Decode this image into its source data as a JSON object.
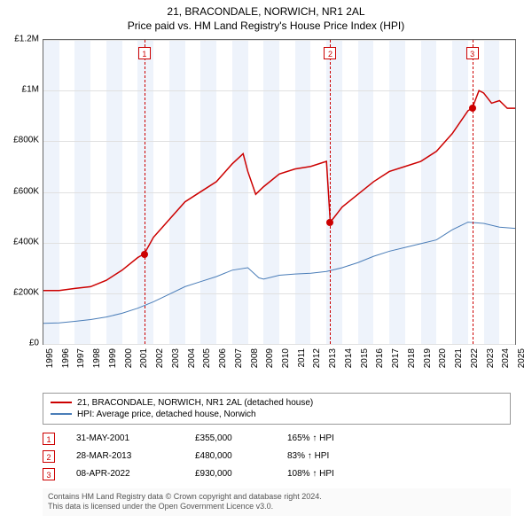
{
  "title": {
    "main": "21, BRACONDALE, NORWICH, NR1 2AL",
    "sub": "Price paid vs. HM Land Registry's House Price Index (HPI)"
  },
  "chart": {
    "type": "line",
    "background_color": "#ffffff",
    "plot_border_color": "#666666",
    "grid_color": "#e0e0e0",
    "band_color": "#eef3fb",
    "y": {
      "min": 0,
      "max": 1200000,
      "ticks": [
        0,
        200000,
        400000,
        600000,
        800000,
        1000000,
        1200000
      ],
      "labels": [
        "£0",
        "£200K",
        "£400K",
        "£600K",
        "£800K",
        "£1M",
        "£1.2M"
      ]
    },
    "x": {
      "min": 1995,
      "max": 2025,
      "ticks": [
        1995,
        1996,
        1997,
        1998,
        1999,
        2000,
        2001,
        2002,
        2003,
        2004,
        2005,
        2006,
        2007,
        2008,
        2009,
        2010,
        2011,
        2012,
        2013,
        2014,
        2015,
        2016,
        2017,
        2018,
        2019,
        2020,
        2021,
        2022,
        2023,
        2024,
        2025
      ]
    },
    "series": [
      {
        "id": "price_paid",
        "label": "21, BRACONDALE, NORWICH, NR1 2AL (detached house)",
        "color": "#cc0000",
        "width": 1.5,
        "points": [
          [
            1995,
            210000
          ],
          [
            1996,
            210000
          ],
          [
            1997,
            218000
          ],
          [
            1998,
            225000
          ],
          [
            1999,
            250000
          ],
          [
            2000,
            290000
          ],
          [
            2001,
            340000
          ],
          [
            2001.42,
            355000
          ],
          [
            2002,
            420000
          ],
          [
            2003,
            490000
          ],
          [
            2004,
            560000
          ],
          [
            2005,
            600000
          ],
          [
            2006,
            640000
          ],
          [
            2007,
            710000
          ],
          [
            2007.7,
            750000
          ],
          [
            2008,
            680000
          ],
          [
            2008.5,
            590000
          ],
          [
            2009,
            620000
          ],
          [
            2010,
            670000
          ],
          [
            2011,
            690000
          ],
          [
            2012,
            700000
          ],
          [
            2013,
            720000
          ],
          [
            2013.24,
            480000
          ],
          [
            2013.5,
            500000
          ],
          [
            2014,
            540000
          ],
          [
            2015,
            590000
          ],
          [
            2016,
            640000
          ],
          [
            2017,
            680000
          ],
          [
            2018,
            700000
          ],
          [
            2019,
            720000
          ],
          [
            2020,
            760000
          ],
          [
            2021,
            830000
          ],
          [
            2022,
            920000
          ],
          [
            2022.27,
            930000
          ],
          [
            2022.7,
            1000000
          ],
          [
            2023,
            990000
          ],
          [
            2023.5,
            950000
          ],
          [
            2024,
            960000
          ],
          [
            2024.5,
            930000
          ],
          [
            2025,
            930000
          ]
        ]
      },
      {
        "id": "hpi",
        "label": "HPI: Average price, detached house, Norwich",
        "color": "#4a7db8",
        "width": 1,
        "points": [
          [
            1995,
            80000
          ],
          [
            1996,
            82000
          ],
          [
            1997,
            88000
          ],
          [
            1998,
            95000
          ],
          [
            1999,
            105000
          ],
          [
            2000,
            120000
          ],
          [
            2001,
            140000
          ],
          [
            2002,
            165000
          ],
          [
            2003,
            195000
          ],
          [
            2004,
            225000
          ],
          [
            2005,
            245000
          ],
          [
            2006,
            265000
          ],
          [
            2007,
            290000
          ],
          [
            2008,
            300000
          ],
          [
            2008.7,
            260000
          ],
          [
            2009,
            255000
          ],
          [
            2010,
            270000
          ],
          [
            2011,
            275000
          ],
          [
            2012,
            278000
          ],
          [
            2013,
            285000
          ],
          [
            2014,
            300000
          ],
          [
            2015,
            320000
          ],
          [
            2016,
            345000
          ],
          [
            2017,
            365000
          ],
          [
            2018,
            380000
          ],
          [
            2019,
            395000
          ],
          [
            2020,
            410000
          ],
          [
            2021,
            450000
          ],
          [
            2022,
            480000
          ],
          [
            2023,
            475000
          ],
          [
            2024,
            460000
          ],
          [
            2025,
            455000
          ]
        ]
      }
    ],
    "events": [
      {
        "n": "1",
        "year": 2001.42,
        "value": 355000
      },
      {
        "n": "2",
        "year": 2013.24,
        "value": 480000
      },
      {
        "n": "3",
        "year": 2022.27,
        "value": 930000
      }
    ],
    "event_line_color": "#cc0000",
    "event_dot_color": "#cc0000"
  },
  "legend": {
    "items": [
      {
        "color": "#cc0000",
        "label": "21, BRACONDALE, NORWICH, NR1 2AL (detached house)"
      },
      {
        "color": "#4a7db8",
        "label": "HPI: Average price, detached house, Norwich"
      }
    ]
  },
  "events_table": [
    {
      "n": "1",
      "date": "31-MAY-2001",
      "price": "£355,000",
      "pct": "165% ↑ HPI"
    },
    {
      "n": "2",
      "date": "28-MAR-2013",
      "price": "£480,000",
      "pct": "83% ↑ HPI"
    },
    {
      "n": "3",
      "date": "08-APR-2022",
      "price": "£930,000",
      "pct": "108% ↑ HPI"
    }
  ],
  "footer": {
    "line1": "Contains HM Land Registry data © Crown copyright and database right 2024.",
    "line2": "This data is licensed under the Open Government Licence v3.0."
  }
}
